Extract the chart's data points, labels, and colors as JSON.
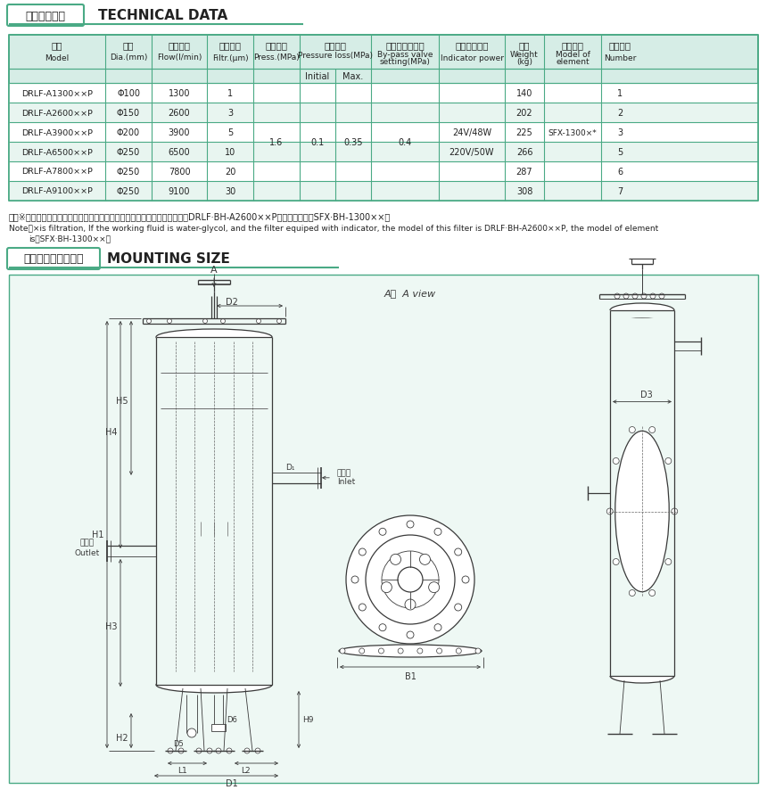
{
  "title_section1": "三、技术参数",
  "title_section1_en": "TECHNICAL DATA",
  "title_section2": "四、安装及外形尺寸",
  "title_section2_en": "MOUNTING SIZE",
  "header_cn1": "型号",
  "header_cn2": "通径",
  "header_cn3": "公称流量",
  "header_cn4": "过滤精度",
  "header_cn5": "公称压力",
  "header_cn6": "压力损失",
  "header_cn7": "旁通阀开启压力",
  "header_cn8": "发讯装置功率",
  "header_cn9": "重量",
  "header_cn10": "滤芯型号",
  "header_cn11": "滤芯数量",
  "header_en1": "Model",
  "header_en2": "Dia.(mm)",
  "header_en3": "Flow(l/min)",
  "header_en4": "Filtr.(μm)",
  "header_en5": "Press.(MPa)",
  "header_en6": "Pressure loss(MPa)",
  "header_en7": "By-pass valve\nsetting(MPa)",
  "header_en8": "Indicator power",
  "header_en9": "Weight\n(kg)",
  "header_en10": "Model of\nelement",
  "header_en11": "Number",
  "pressure_sub1": "Initial",
  "pressure_sub2": "Max.",
  "rows": [
    [
      "DRLF-A1300××P",
      "Φ100",
      "1300",
      "1",
      "",
      "",
      "",
      "",
      "140",
      "",
      "1"
    ],
    [
      "DRLF-A2600××P",
      "Φ150",
      "2600",
      "3",
      "",
      "",
      "",
      "",
      "202",
      "",
      "2"
    ],
    [
      "DRLF-A3900××P",
      "Φ200",
      "3900",
      "5",
      "1.6",
      "0.1",
      "0.35",
      "0.4",
      "225",
      "SFX-1300×*",
      "3"
    ],
    [
      "DRLF-A6500××P",
      "Φ250",
      "6500",
      "10",
      "",
      "",
      "",
      "",
      "266",
      "",
      "5"
    ],
    [
      "DRLF-A7800××P",
      "Φ250",
      "7800",
      "20",
      "",
      "",
      "",
      "",
      "287",
      "",
      "6"
    ],
    [
      "DRLF-A9100××P",
      "Φ250",
      "9100",
      "30",
      "",
      "",
      "",
      "",
      "308",
      "",
      "7"
    ]
  ],
  "indicator_power1": "24V/48W",
  "indicator_power2": "220V/50W",
  "note_cn": "注：※为过滤精度，若使用介质为水一乙二醇，带发讯器，则过滤器型号为：DRLF·BH-A2600××P，滤芯型号为：SFX·BH-1300××。",
  "note_en1": "Note：×is filtration, If the working fluid is water-glycol, and the filter equiped with indicator, the model of this filter is DRLF·BH-A2600××P, the model of element",
  "note_en2": "is：SFX·BH-1300××。",
  "bg_color": "#ffffff",
  "table_header_bg": "#d6ede6",
  "table_row_even": "#ffffff",
  "table_row_odd": "#e8f5f0",
  "border_color": "#4aaa85",
  "text_color": "#222222",
  "section_box_color": "#4aaa85",
  "diagram_bg": "#eef8f4"
}
